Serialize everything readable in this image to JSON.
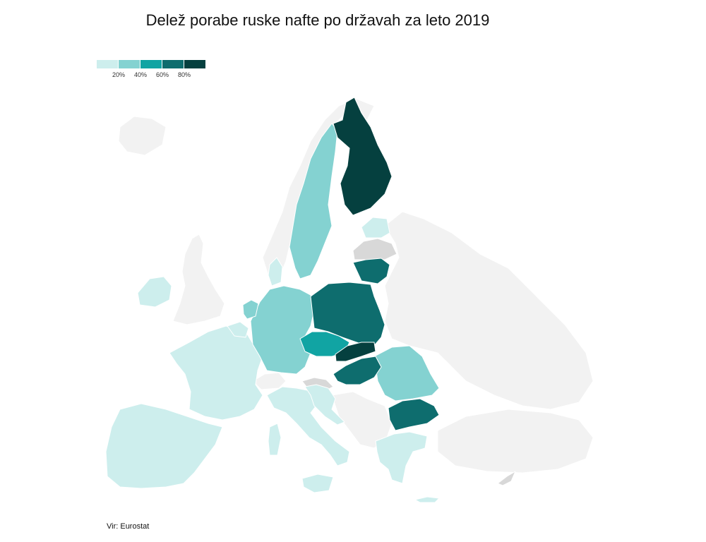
{
  "title": "Delež porabe ruske nafte po državah za leto 2019",
  "source": "Vir: Eurostat",
  "legend": {
    "bins": [
      {
        "color": "#cdeeed",
        "label": ""
      },
      {
        "color": "#84d2d1",
        "label": "20%"
      },
      {
        "color": "#11a4a3",
        "label": "40%"
      },
      {
        "color": "#0e6d6e",
        "label": "60%"
      },
      {
        "color": "#05403f",
        "label": "80%"
      }
    ]
  },
  "colors": {
    "non_eu": "#f2f2f2",
    "no_data": "#d8d8d8",
    "bin_0_20": "#cdeeed",
    "bin_20_40": "#84d2d1",
    "bin_40_60": "#11a4a3",
    "bin_60_80": "#0e6d6e",
    "bin_80_100": "#05403f"
  }
}
